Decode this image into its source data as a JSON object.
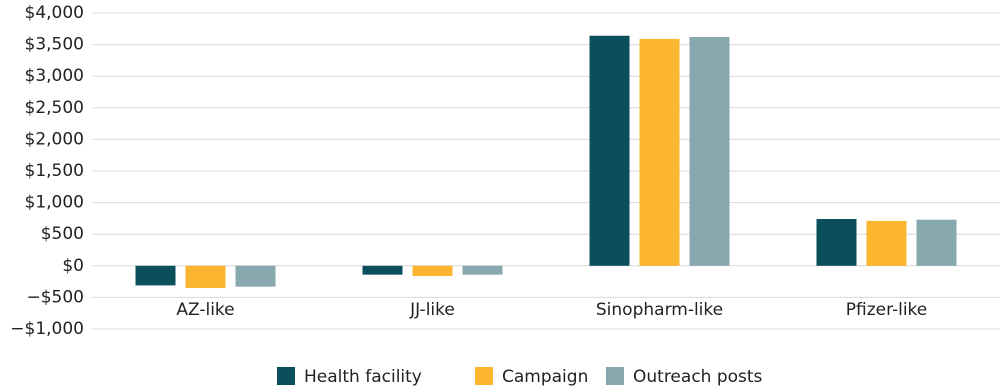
{
  "chart_data": {
    "type": "bar",
    "categories": [
      "AZ-like",
      "JJ-like",
      "Sinopharm-like",
      "Pfizer-like"
    ],
    "series": [
      {
        "name": "Health facility",
        "color": "#0b4f5c",
        "values": [
          -310,
          -140,
          3640,
          740
        ]
      },
      {
        "name": "Campaign",
        "color": "#fbb52e",
        "values": [
          -350,
          -160,
          3590,
          710
        ]
      },
      {
        "name": "Outreach posts",
        "color": "#87a8ae",
        "values": [
          -330,
          -140,
          3620,
          730
        ]
      }
    ],
    "ylim": [
      -1000,
      4000
    ],
    "yticks": [
      {
        "value": -1000,
        "label": "−$1,000"
      },
      {
        "value": -500,
        "label": "−$500"
      },
      {
        "value": 0,
        "label": "$0"
      },
      {
        "value": 500,
        "label": "$500"
      },
      {
        "value": 1000,
        "label": "$1,000"
      },
      {
        "value": 1500,
        "label": "$1,500"
      },
      {
        "value": 2000,
        "label": "$2,000"
      },
      {
        "value": 2500,
        "label": "$2,500"
      },
      {
        "value": 3000,
        "label": "$3,000"
      },
      {
        "value": 3500,
        "label": "$3,500"
      },
      {
        "value": 4000,
        "label": "$4,000"
      }
    ],
    "grid": true,
    "legend": "bottom"
  }
}
